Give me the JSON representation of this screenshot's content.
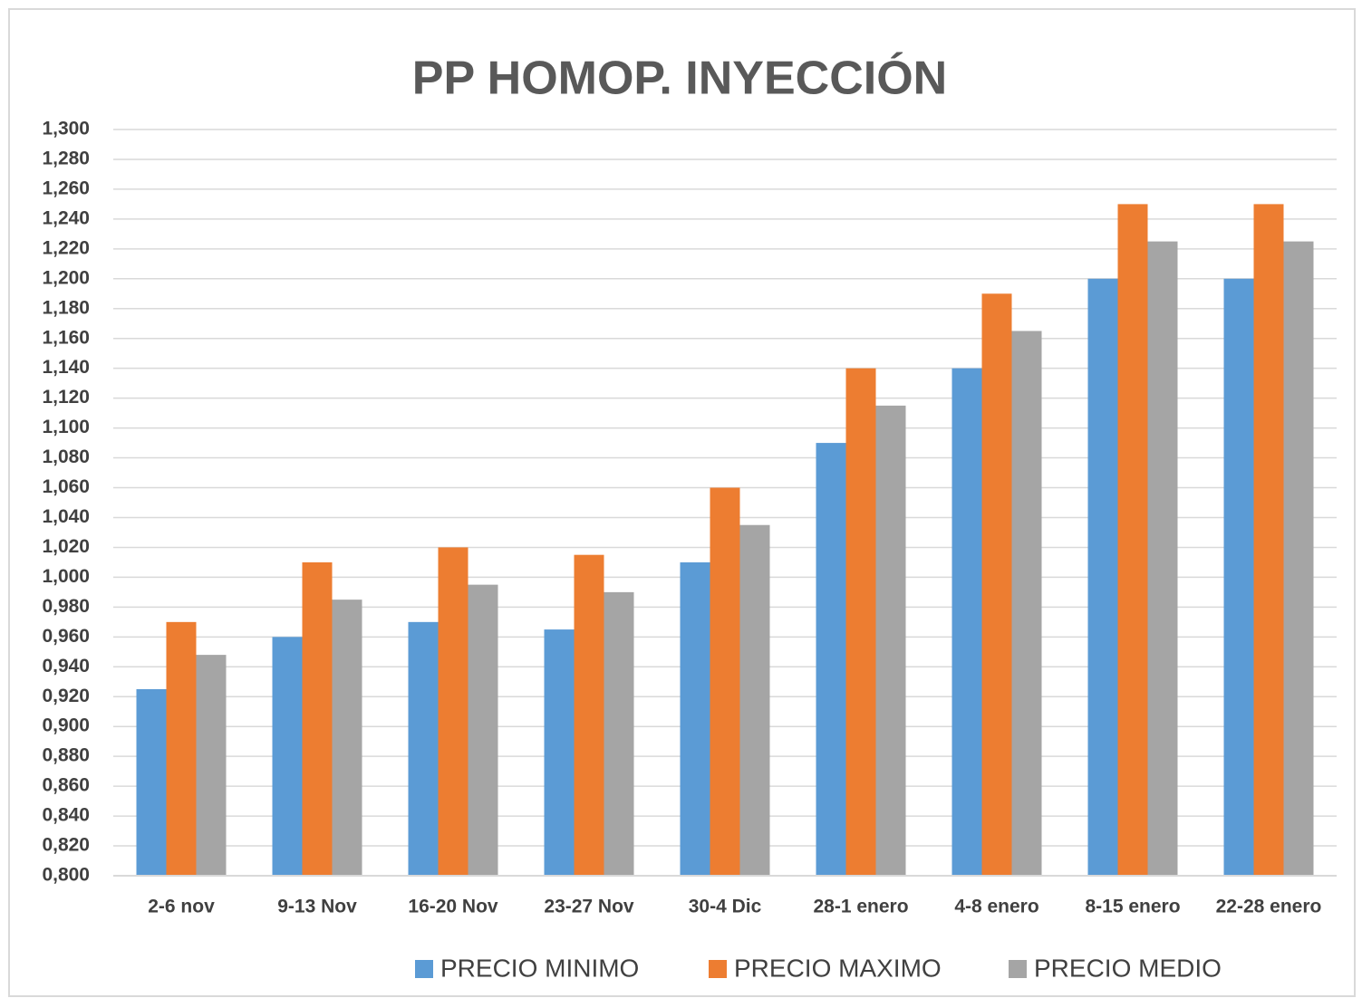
{
  "chart_data": {
    "type": "bar",
    "title": "PP HOMOP. INYECCIÓN",
    "categories": [
      "2-6 nov",
      "9-13 Nov",
      "16-20 Nov",
      "23-27 Nov",
      "30-4 Dic",
      "28-1 enero",
      "4-8 enero",
      "8-15 enero",
      "22-28 enero"
    ],
    "series": [
      {
        "name": "PRECIO MINIMO",
        "color": "#5b9bd5",
        "values": [
          0.925,
          0.96,
          0.97,
          0.965,
          1.01,
          1.09,
          1.14,
          1.2,
          1.2
        ]
      },
      {
        "name": "PRECIO MAXIMO",
        "color": "#ed7d31",
        "values": [
          0.97,
          1.01,
          1.02,
          1.015,
          1.06,
          1.14,
          1.19,
          1.25,
          1.25
        ]
      },
      {
        "name": "PRECIO MEDIO",
        "color": "#a5a5a5",
        "values": [
          0.948,
          0.985,
          0.995,
          0.99,
          1.035,
          1.115,
          1.165,
          1.225,
          1.225
        ]
      }
    ],
    "ylim": [
      0.8,
      1.3
    ],
    "yticks": [
      {
        "value": 0.8,
        "label": "0,800"
      },
      {
        "value": 0.82,
        "label": "0,820"
      },
      {
        "value": 0.84,
        "label": "0,840"
      },
      {
        "value": 0.86,
        "label": "0,860"
      },
      {
        "value": 0.88,
        "label": "0,880"
      },
      {
        "value": 0.9,
        "label": "0,900"
      },
      {
        "value": 0.92,
        "label": "0,920"
      },
      {
        "value": 0.94,
        "label": "0,940"
      },
      {
        "value": 0.96,
        "label": "0,960"
      },
      {
        "value": 0.98,
        "label": "0,980"
      },
      {
        "value": 1.0,
        "label": "1,000"
      },
      {
        "value": 1.02,
        "label": "1,020"
      },
      {
        "value": 1.04,
        "label": "1,040"
      },
      {
        "value": 1.06,
        "label": "1,060"
      },
      {
        "value": 1.08,
        "label": "1,080"
      },
      {
        "value": 1.1,
        "label": "1,100"
      },
      {
        "value": 1.12,
        "label": "1,120"
      },
      {
        "value": 1.14,
        "label": "1,140"
      },
      {
        "value": 1.16,
        "label": "1,160"
      },
      {
        "value": 1.18,
        "label": "1,180"
      },
      {
        "value": 1.2,
        "label": "1,200"
      },
      {
        "value": 1.22,
        "label": "1,220"
      },
      {
        "value": 1.24,
        "label": "1,240"
      },
      {
        "value": 1.26,
        "label": "1,260"
      },
      {
        "value": 1.28,
        "label": "1,280"
      },
      {
        "value": 1.3,
        "label": "1,300"
      }
    ],
    "grid": true,
    "legend": "bottom"
  }
}
